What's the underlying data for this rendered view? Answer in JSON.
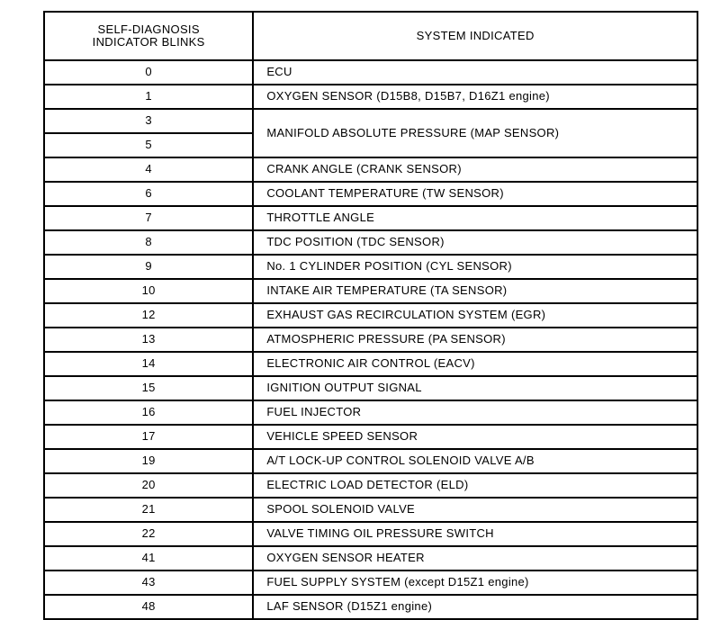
{
  "table": {
    "header_blinks_line1": "SELF-DIAGNOSIS",
    "header_blinks_line2": "INDICATOR BLINKS",
    "header_system": "SYSTEM INDICATED",
    "colors": {
      "border": "#000000",
      "background": "#ffffff",
      "text": "#000000"
    },
    "font_size_pt": 10,
    "rows": [
      {
        "blinks": "0",
        "system": "ECU"
      },
      {
        "blinks": "1",
        "system": "OXYGEN SENSOR (D15B8, D15B7, D16Z1 engine)"
      },
      {
        "blinks": "3",
        "system": "MANIFOLD ABSOLUTE PRESSURE (MAP SENSOR)",
        "merged_with_next": true
      },
      {
        "blinks": "5",
        "system": ""
      },
      {
        "blinks": "4",
        "system": "CRANK ANGLE (CRANK SENSOR)"
      },
      {
        "blinks": "6",
        "system": "COOLANT TEMPERATURE (TW SENSOR)"
      },
      {
        "blinks": "7",
        "system": "THROTTLE ANGLE"
      },
      {
        "blinks": "8",
        "system": "TDC POSITION (TDC SENSOR)"
      },
      {
        "blinks": "9",
        "system": "No. 1 CYLINDER POSITION (CYL SENSOR)"
      },
      {
        "blinks": "10",
        "system": "INTAKE AIR TEMPERATURE (TA SENSOR)"
      },
      {
        "blinks": "12",
        "system": "EXHAUST GAS RECIRCULATION SYSTEM (EGR)"
      },
      {
        "blinks": "13",
        "system": "ATMOSPHERIC PRESSURE (PA SENSOR)"
      },
      {
        "blinks": "14",
        "system": "ELECTRONIC AIR CONTROL (EACV)"
      },
      {
        "blinks": "15",
        "system": "IGNITION OUTPUT SIGNAL"
      },
      {
        "blinks": "16",
        "system": "FUEL INJECTOR"
      },
      {
        "blinks": "17",
        "system": "VEHICLE SPEED SENSOR"
      },
      {
        "blinks": "19",
        "system": "A/T LOCK-UP CONTROL SOLENOID VALVE A/B"
      },
      {
        "blinks": "20",
        "system": "ELECTRIC LOAD DETECTOR (ELD)"
      },
      {
        "blinks": "21",
        "system": "SPOOL SOLENOID VALVE"
      },
      {
        "blinks": "22",
        "system": "VALVE TIMING OIL PRESSURE SWITCH"
      },
      {
        "blinks": "41",
        "system": "OXYGEN SENSOR HEATER"
      },
      {
        "blinks": "43",
        "system": "FUEL SUPPLY SYSTEM (except D15Z1 engine)"
      },
      {
        "blinks": "48",
        "system": "LAF SENSOR (D15Z1 engine)"
      }
    ]
  }
}
